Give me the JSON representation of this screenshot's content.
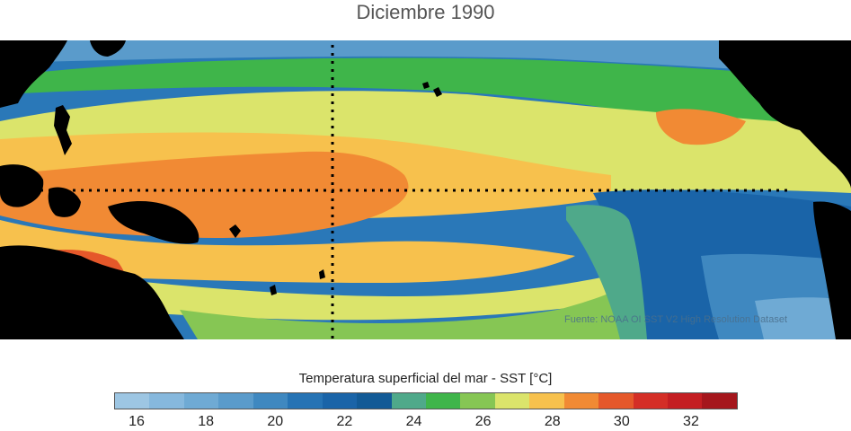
{
  "title": "Diciembre 1990",
  "source_text": "Fuente: NOAA OI SST V2 High Resolution Dataset",
  "colorbar": {
    "title": "Temperatura superficial del mar - SST  [°C]",
    "colors": [
      "#9dc6e3",
      "#86b8dd",
      "#6faad4",
      "#5a9bcb",
      "#3f88c0",
      "#2673b4",
      "#1a64a8",
      "#125a96",
      "#4fa98a",
      "#3fb54a",
      "#86c654",
      "#dbe46b",
      "#f7c14d",
      "#f18a34",
      "#e5582a",
      "#d42e26",
      "#c41e22",
      "#a5161c"
    ],
    "tick_labels": [
      "16",
      "18",
      "20",
      "22",
      "24",
      "26",
      "28",
      "30",
      "32"
    ]
  },
  "map_colors": {
    "land": "#000000",
    "grid": "#000000"
  }
}
